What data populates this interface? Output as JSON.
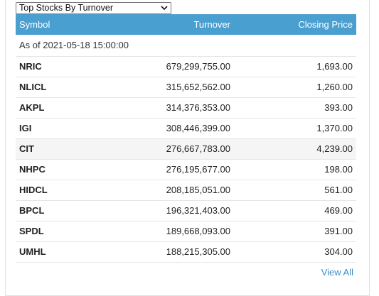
{
  "selector": {
    "selected": "Top Stocks By Turnover"
  },
  "table": {
    "headers": {
      "symbol": "Symbol",
      "turnover": "Turnover",
      "closing_price": "Closing Price"
    },
    "as_of": "As of 2021-05-18 15:00:00",
    "rows": [
      {
        "symbol": "NRIC",
        "turnover": "679,299,755.00",
        "closing_price": "1,693.00"
      },
      {
        "symbol": "NLICL",
        "turnover": "315,652,562.00",
        "closing_price": "1,260.00"
      },
      {
        "symbol": "AKPL",
        "turnover": "314,376,353.00",
        "closing_price": "393.00"
      },
      {
        "symbol": "IGI",
        "turnover": "308,446,399.00",
        "closing_price": "1,370.00"
      },
      {
        "symbol": "CIT",
        "turnover": "276,667,783.00",
        "closing_price": "4,239.00"
      },
      {
        "symbol": "NHPC",
        "turnover": "276,195,677.00",
        "closing_price": "198.00"
      },
      {
        "symbol": "HIDCL",
        "turnover": "208,185,051.00",
        "closing_price": "561.00"
      },
      {
        "symbol": "BPCL",
        "turnover": "196,321,403.00",
        "closing_price": "469.00"
      },
      {
        "symbol": "SPDL",
        "turnover": "189,668,093.00",
        "closing_price": "391.00"
      },
      {
        "symbol": "UMHL",
        "turnover": "188,215,305.00",
        "closing_price": "304.00"
      }
    ]
  },
  "footer": {
    "view_all": "View All"
  },
  "colors": {
    "header_bg": "#4a9fd1",
    "link": "#3a8fc8",
    "highlight_row": "#f5f5f5"
  }
}
